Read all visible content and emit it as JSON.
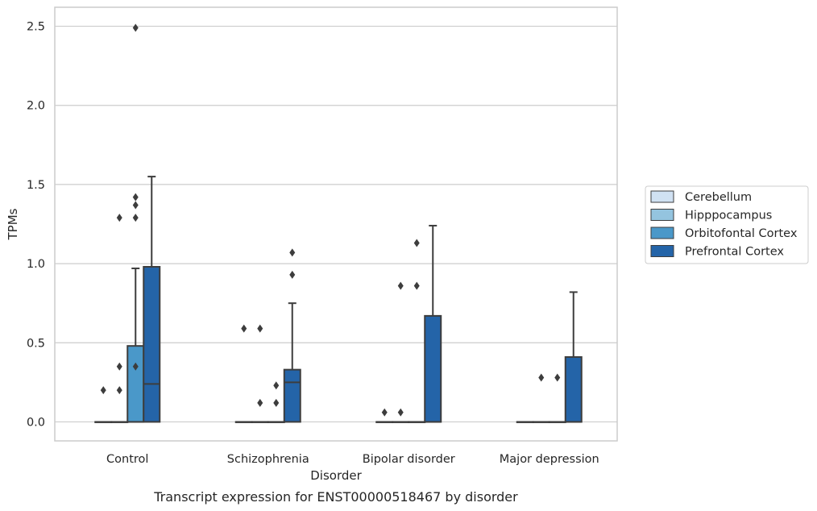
{
  "caption": "Transcript expression for ENST00000518467 by disorder",
  "chart_data": {
    "type": "box",
    "xlabel": "Disorder",
    "ylabel": "TPMs",
    "ylim": [
      -0.12,
      2.62
    ],
    "yticks": [
      "0.0",
      "0.5",
      "1.0",
      "1.5",
      "2.0",
      "2.5"
    ],
    "ytick_values": [
      0.0,
      0.5,
      1.0,
      1.5,
      2.0,
      2.5
    ],
    "grid": "horizontal",
    "legend_position": "right",
    "categories": [
      "Control",
      "Schizophrenia",
      "Bipolar disorder",
      "Major depression"
    ],
    "series": [
      {
        "name": "Cerebellum",
        "color": "#d0e1f2",
        "boxes": [
          {
            "q1": 0,
            "median": 0,
            "q3": 0,
            "whisker_low": 0,
            "whisker_high": 0,
            "outliers": []
          },
          {
            "q1": 0,
            "median": 0,
            "q3": 0,
            "whisker_low": 0,
            "whisker_high": 0,
            "outliers": []
          },
          {
            "q1": 0,
            "median": 0,
            "q3": 0,
            "whisker_low": 0,
            "whisker_high": 0,
            "outliers": []
          },
          {
            "q1": 0,
            "median": 0,
            "q3": 0,
            "whisker_low": 0,
            "whisker_high": 0,
            "outliers": []
          }
        ]
      },
      {
        "name": "Hipppocampus",
        "color": "#94c4df",
        "boxes": [
          {
            "q1": 0,
            "median": 0,
            "q3": 0,
            "whisker_low": 0,
            "whisker_high": 0,
            "outliers": [
              0.2
            ]
          },
          {
            "q1": 0,
            "median": 0,
            "q3": 0,
            "whisker_low": 0,
            "whisker_high": 0,
            "outliers": [
              0.59
            ]
          },
          {
            "q1": 0,
            "median": 0,
            "q3": 0,
            "whisker_low": 0,
            "whisker_high": 0,
            "outliers": [
              0.06
            ]
          },
          {
            "q1": 0,
            "median": 0,
            "q3": 0,
            "whisker_low": 0,
            "whisker_high": 0,
            "outliers": []
          }
        ]
      },
      {
        "name": "Orbitofontal Cortex",
        "color": "#4a98c9",
        "boxes": [
          {
            "q1": 0,
            "median": 0,
            "q3": 0,
            "whisker_low": 0,
            "whisker_high": 0,
            "outliers": [
              0.35,
              1.29
            ]
          },
          {
            "q1": 0,
            "median": 0,
            "q3": 0,
            "whisker_low": 0,
            "whisker_high": 0,
            "outliers": [
              0.12
            ]
          },
          {
            "q1": 0,
            "median": 0,
            "q3": 0,
            "whisker_low": 0,
            "whisker_high": 0,
            "outliers": [
              0.86
            ]
          },
          {
            "q1": 0,
            "median": 0,
            "q3": 0,
            "whisker_low": 0,
            "whisker_high": 0,
            "outliers": [
              0.28
            ]
          }
        ]
      },
      {
        "name": "Prefrontal Cortex",
        "color": "#2464a8",
        "boxes": [
          {
            "q1": 0,
            "median": 0,
            "q3": 0.48,
            "whisker_low": 0,
            "whisker_high": 0.97,
            "outliers": [
              1.37,
              1.42,
              2.49
            ]
          },
          {
            "q1": 0,
            "median": 0,
            "q3": 0,
            "whisker_low": 0,
            "whisker_high": 0,
            "outliers": [
              0.23
            ]
          },
          {
            "q1": 0,
            "median": 0,
            "q3": 0,
            "whisker_low": 0,
            "whisker_high": 0,
            "outliers": [
              1.13
            ]
          },
          {
            "q1": 0,
            "median": 0,
            "q3": 0,
            "whisker_low": 0,
            "whisker_high": 0,
            "outliers": []
          }
        ]
      },
      {
        "name": "",
        "color": "#2464a8",
        "boxes": []
      }
    ],
    "boxes_overlay": [
      {
        "category": "Control",
        "slot": 4,
        "q1": 0,
        "median": 0.24,
        "q3": 0.98,
        "whisker_low": 0,
        "whisker_high": 1.55,
        "outliers": []
      },
      {
        "category": "Schizophrenia",
        "slot": 4,
        "q1": 0,
        "median": 0.25,
        "q3": 0.33,
        "whisker_low": 0,
        "whisker_high": 0.75,
        "outliers": [
          0.93,
          1.07
        ]
      },
      {
        "category": "Bipolar disorder",
        "slot": 4,
        "q1": 0,
        "median": 0,
        "q3": 0.67,
        "whisker_low": 0,
        "whisker_high": 1.24,
        "outliers": []
      },
      {
        "category": "Major depression",
        "slot": 4,
        "q1": 0,
        "median": 0,
        "q3": 0.41,
        "whisker_low": 0,
        "whisker_high": 0.82,
        "outliers": []
      }
    ]
  }
}
